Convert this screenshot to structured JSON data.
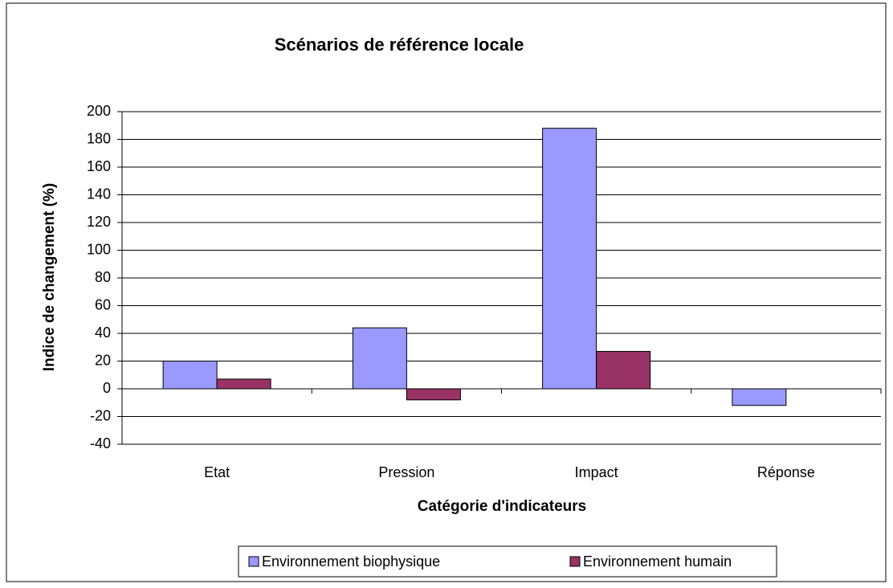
{
  "chart_data": {
    "type": "bar",
    "title": "Scénarios  de  référence  locale",
    "x_label": "Catégorie d'indicateurs",
    "y_label": "Indice de changement (%)",
    "categories": [
      "Etat",
      "Pression",
      "Impact",
      "Réponse"
    ],
    "series": [
      {
        "name": "Environnement biophysique",
        "color": "#9999ff",
        "values": [
          20,
          44,
          188,
          -12
        ]
      },
      {
        "name": "Environnement humain",
        "color": "#993366",
        "values": [
          7,
          -8,
          27,
          0
        ]
      }
    ],
    "ylim": [
      -40,
      200
    ],
    "yticks": [
      -40,
      -20,
      0,
      20,
      40,
      60,
      80,
      100,
      120,
      140,
      160,
      180,
      200
    ],
    "grid": true,
    "legend": "bottom"
  }
}
